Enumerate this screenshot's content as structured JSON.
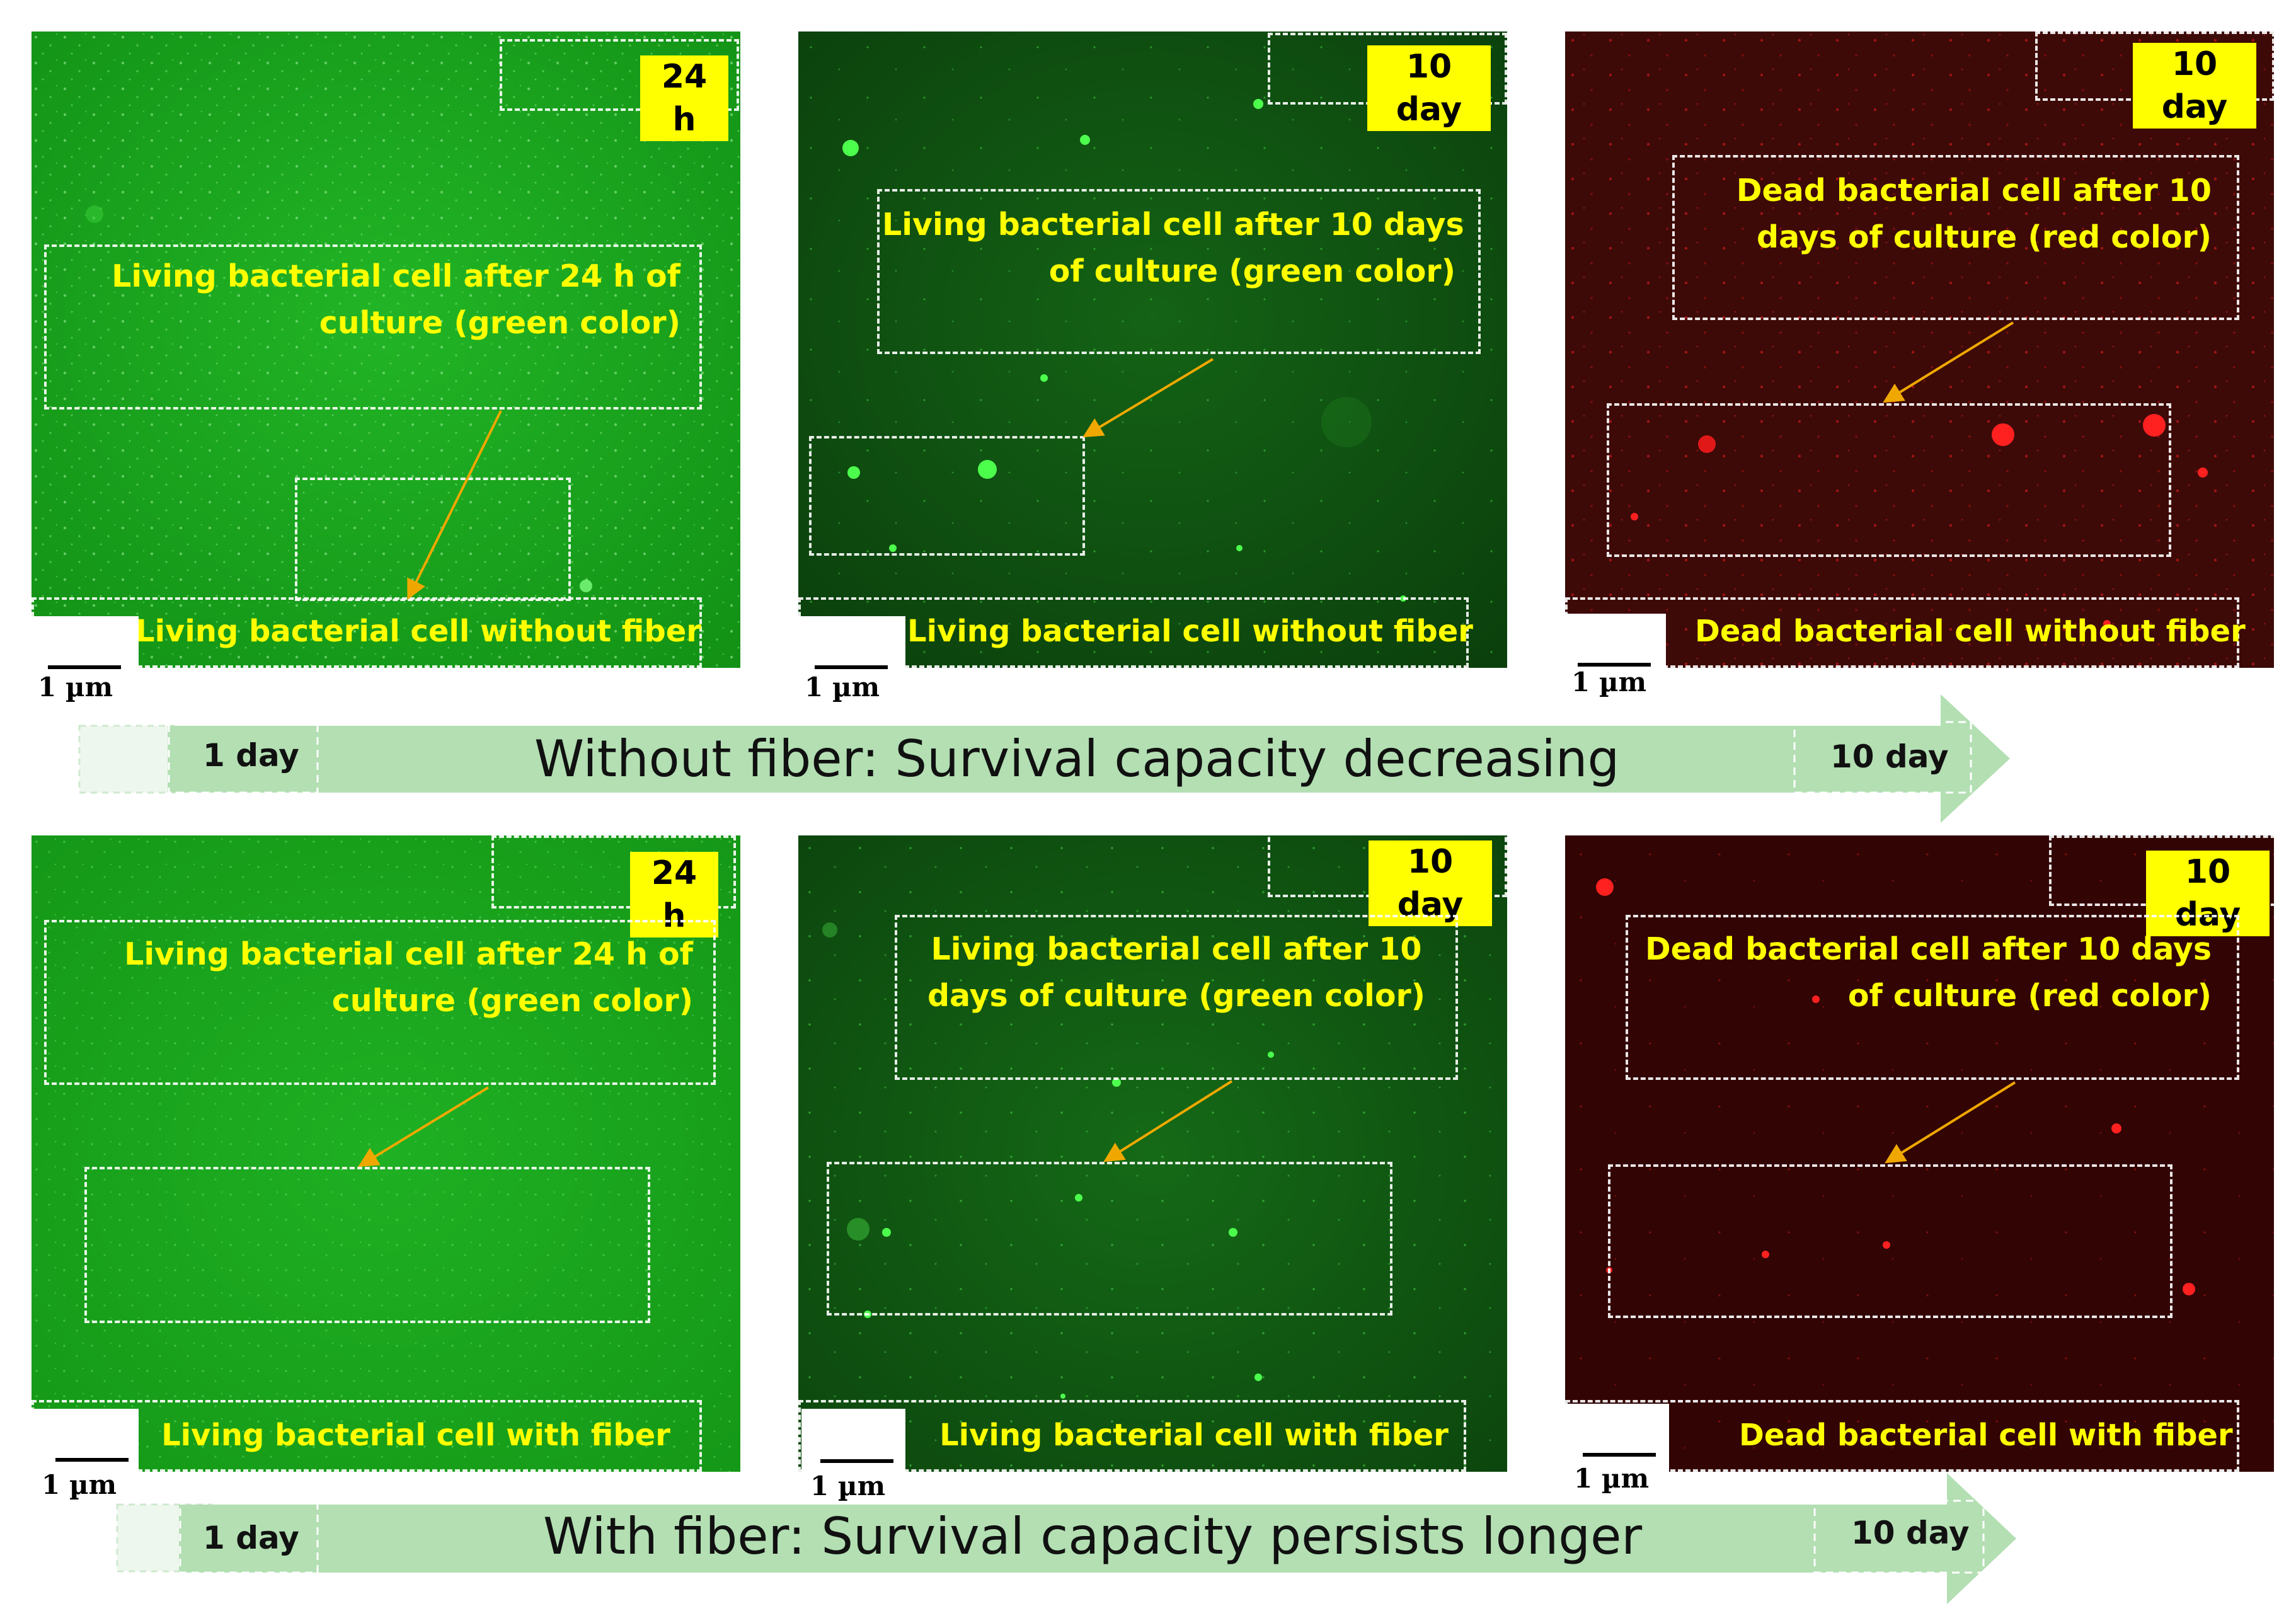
{
  "colors": {
    "green_bg": "#17a51c",
    "dark_green_bg": "#0f4f10",
    "red_bg": "#3a0a08",
    "badge": "#ffff00",
    "caption": "#ffff00",
    "arrow_band": "#b5e0b5",
    "arrow_line": "#f0a800"
  },
  "row1": {
    "panel1": {
      "badge": "24 h",
      "caption_line1": "Living bacterial cell after 24 h of",
      "caption_line2": "culture (green color)",
      "bottom": "Living bacterial cell without fiber",
      "scale": "1 µm"
    },
    "panel2": {
      "badge": "10 day",
      "caption_line1": "Living bacterial cell after 10 days",
      "caption_line2": "of culture (green color)",
      "bottom": "Living bacterial cell without fiber",
      "scale": "1 µm"
    },
    "panel3": {
      "badge": "10 day",
      "caption_line1": "Dead bacterial cell after 10",
      "caption_line2": "days of culture (red color)",
      "bottom": "Dead bacterial cell without fiber",
      "scale": "1 µm"
    },
    "arrow": {
      "start": "1 day",
      "title": "Without fiber: Survival capacity decreasing",
      "end": "10 day"
    }
  },
  "row2": {
    "panel1": {
      "badge": "24 h",
      "caption_line1": "Living bacterial cell after 24 h  of",
      "caption_line2": "culture (green color)",
      "bottom": "Living bacterial cell with fiber",
      "scale": "1 µm"
    },
    "panel2": {
      "badge": "10 day",
      "caption_line1": "Living bacterial cell after 10",
      "caption_line2": "days of culture (green color)",
      "bottom": "Living bacterial cell with fiber",
      "scale": "1 µm"
    },
    "panel3": {
      "badge": "10 day",
      "caption_line1": "Dead bacterial cell after 10 days",
      "caption_line2": "of culture (red color)",
      "bottom": "Dead bacterial cell with fiber",
      "scale": "1 µm"
    },
    "arrow": {
      "start": "1 day",
      "title": "With fiber: Survival capacity persists longer",
      "end": "10 day"
    }
  }
}
